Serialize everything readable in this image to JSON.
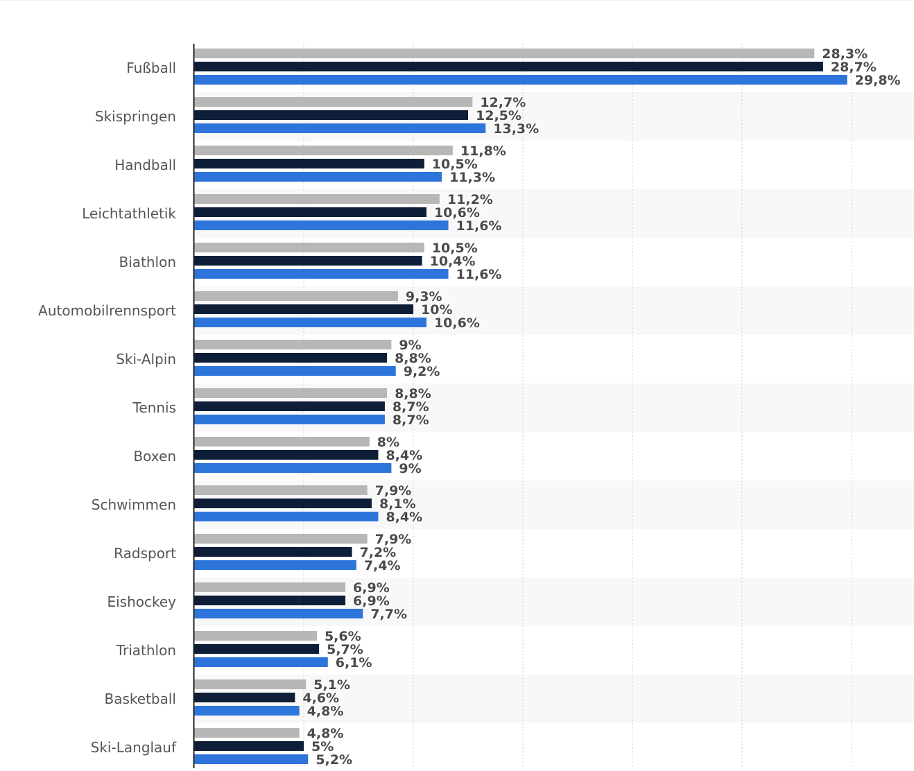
{
  "chart_data": {
    "type": "bar",
    "orientation": "horizontal",
    "categories": [
      "Fußball",
      "Skispringen",
      "Handball",
      "Leichtathletik",
      "Biathlon",
      "Automobilrennsport",
      "Ski-Alpin",
      "Tennis",
      "Boxen",
      "Schwimmen",
      "Radsport",
      "Eishockey",
      "Triathlon",
      "Basketball",
      "Ski-Langlauf"
    ],
    "series": [
      {
        "color": "#b7b7b7",
        "values": [
          28.3,
          12.7,
          11.8,
          11.2,
          10.5,
          9.3,
          9,
          8.8,
          8,
          7.9,
          7.9,
          6.9,
          5.6,
          5.1,
          4.8
        ],
        "labels": [
          "28,3%",
          "12,7%",
          "11,8%",
          "11,2%",
          "10,5%",
          "9,3%",
          "9%",
          "8,8%",
          "8%",
          "7,9%",
          "7,9%",
          "6,9%",
          "5,6%",
          "5,1%",
          "4,8%"
        ]
      },
      {
        "color": "#0f1e38",
        "values": [
          28.7,
          12.5,
          10.5,
          10.6,
          10.4,
          10,
          8.8,
          8.7,
          8.4,
          8.1,
          7.2,
          6.9,
          5.7,
          4.6,
          5
        ],
        "labels": [
          "28,7%",
          "12,5%",
          "10,5%",
          "10,6%",
          "10,4%",
          "10%",
          "8,8%",
          "8,7%",
          "8,4%",
          "8,1%",
          "7,2%",
          "6,9%",
          "5,7%",
          "4,6%",
          "5%"
        ]
      },
      {
        "color": "#2e75db",
        "values": [
          29.8,
          13.3,
          11.3,
          11.6,
          11.6,
          10.6,
          9.2,
          8.7,
          9,
          8.4,
          7.4,
          7.7,
          6.1,
          4.8,
          5.2
        ],
        "labels": [
          "29,8%",
          "13,3%",
          "11,3%",
          "11,6%",
          "11,6%",
          "10,6%",
          "9,2%",
          "8,7%",
          "9%",
          "8,4%",
          "7,4%",
          "7,7%",
          "6,1%",
          "4,8%",
          "5,2%"
        ]
      }
    ],
    "xlim": [
      0,
      33
    ],
    "grid": true,
    "band_color": "#f8f8f8",
    "grid_color": "#cccccc",
    "axis_color": "#222222",
    "label_color": "#4a4a4a",
    "category_color": "#555555"
  }
}
